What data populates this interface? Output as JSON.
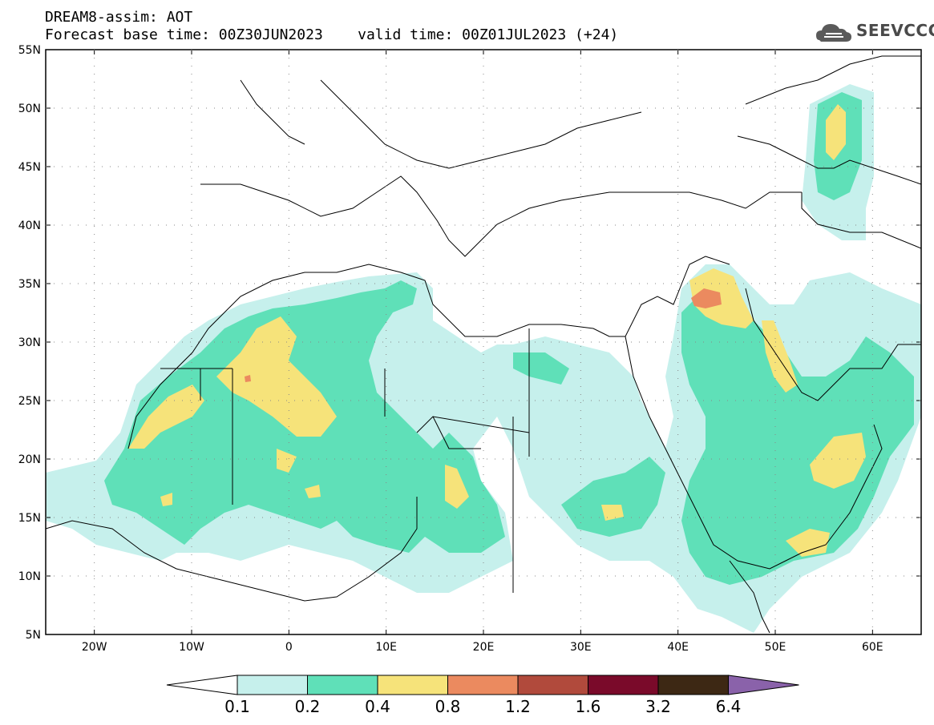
{
  "header": {
    "line1": "DREAM8-assim: AOT",
    "line2": "Forecast base time: 00Z30JUN2023    valid time: 00Z01JUL2023 (+24)"
  },
  "logo": {
    "text": "SEEVCCC",
    "icon": "cloud-icon"
  },
  "map": {
    "lon_range": [
      -25,
      65
    ],
    "lat_range": [
      5,
      55
    ],
    "lat_ticks": [
      "55N",
      "50N",
      "45N",
      "40N",
      "35N",
      "30N",
      "25N",
      "20N",
      "15N",
      "10N",
      "5N"
    ],
    "lon_ticks": [
      "20W",
      "10W",
      "0",
      "10E",
      "20E",
      "30E",
      "40E",
      "50E",
      "60E"
    ],
    "field": "AOT"
  },
  "colorbar": {
    "labels": [
      "0.1",
      "0.2",
      "0.4",
      "0.8",
      "1.2",
      "1.6",
      "3.2",
      "6.4"
    ],
    "colors": [
      "#ffffff",
      "#c6f0ec",
      "#5fe0b8",
      "#f6e37a",
      "#eb8a5f",
      "#b14a3c",
      "#7a0a2a",
      "#3d2814",
      "#8a62aa"
    ]
  }
}
